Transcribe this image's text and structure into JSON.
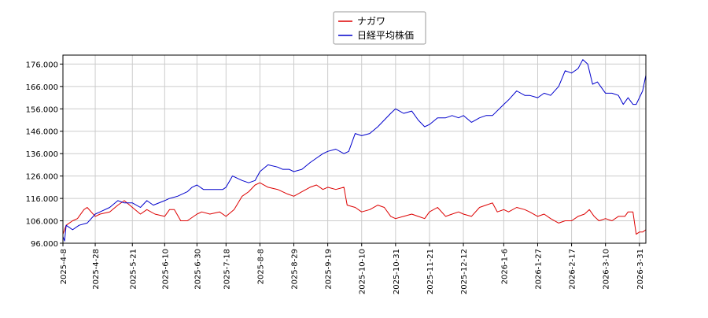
{
  "chart_data": {
    "type": "line",
    "title": "",
    "xlabel": "",
    "ylabel": "",
    "ylim": [
      96,
      180
    ],
    "y_ticks": [
      96,
      106,
      116,
      126,
      136,
      146,
      156,
      166,
      176
    ],
    "y_tick_labels": [
      "96.000",
      "106.000",
      "116.000",
      "126.000",
      "136.000",
      "146.000",
      "156.000",
      "166.000",
      "176.000"
    ],
    "x_range": [
      "2025-04-08",
      "2026-04-04"
    ],
    "x_ticks": [
      "2025-4-8",
      "2025-4-28",
      "2025-5-21",
      "2025-6-10",
      "2025-6-30",
      "2025-7-18",
      "2025-8-8",
      "2025-8-29",
      "2025-9-19",
      "2025-10-10",
      "2025-10-31",
      "2025-11-21",
      "2025-12-12",
      "2026-1-6",
      "2026-1-27",
      "2026-2-17",
      "2026-3-10",
      "2026-3-31"
    ],
    "grid": true,
    "legend_position": "top-center",
    "series": [
      {
        "name": "ナガワ",
        "color": "#dd0000",
        "points": [
          [
            "2025-04-08",
            100
          ],
          [
            "2025-04-10",
            104
          ],
          [
            "2025-04-14",
            106
          ],
          [
            "2025-04-17",
            107
          ],
          [
            "2025-04-21",
            111
          ],
          [
            "2025-04-23",
            112
          ],
          [
            "2025-04-28",
            108
          ],
          [
            "2025-05-01",
            109
          ],
          [
            "2025-05-07",
            110
          ],
          [
            "2025-05-12",
            113
          ],
          [
            "2025-05-16",
            115
          ],
          [
            "2025-05-21",
            112
          ],
          [
            "2025-05-26",
            109
          ],
          [
            "2025-05-30",
            111
          ],
          [
            "2025-06-04",
            109
          ],
          [
            "2025-06-10",
            108
          ],
          [
            "2025-06-13",
            111
          ],
          [
            "2025-06-16",
            111
          ],
          [
            "2025-06-20",
            106
          ],
          [
            "2025-06-24",
            106
          ],
          [
            "2025-06-30",
            109
          ],
          [
            "2025-07-03",
            110
          ],
          [
            "2025-07-08",
            109
          ],
          [
            "2025-07-14",
            110
          ],
          [
            "2025-07-18",
            108
          ],
          [
            "2025-07-23",
            111
          ],
          [
            "2025-07-28",
            117
          ],
          [
            "2025-08-01",
            119
          ],
          [
            "2025-08-05",
            122
          ],
          [
            "2025-08-08",
            123
          ],
          [
            "2025-08-13",
            121
          ],
          [
            "2025-08-19",
            120
          ],
          [
            "2025-08-25",
            118
          ],
          [
            "2025-08-29",
            117
          ],
          [
            "2025-09-03",
            119
          ],
          [
            "2025-09-08",
            121
          ],
          [
            "2025-09-12",
            122
          ],
          [
            "2025-09-16",
            120
          ],
          [
            "2025-09-19",
            121
          ],
          [
            "2025-09-24",
            120
          ],
          [
            "2025-09-29",
            121
          ],
          [
            "2025-10-01",
            113
          ],
          [
            "2025-10-06",
            112
          ],
          [
            "2025-10-10",
            110
          ],
          [
            "2025-10-15",
            111
          ],
          [
            "2025-10-20",
            113
          ],
          [
            "2025-10-24",
            112
          ],
          [
            "2025-10-28",
            108
          ],
          [
            "2025-10-31",
            107
          ],
          [
            "2025-11-05",
            108
          ],
          [
            "2025-11-10",
            109
          ],
          [
            "2025-11-14",
            108
          ],
          [
            "2025-11-18",
            107
          ],
          [
            "2025-11-21",
            110
          ],
          [
            "2025-11-26",
            112
          ],
          [
            "2025-12-01",
            108
          ],
          [
            "2025-12-05",
            109
          ],
          [
            "2025-12-09",
            110
          ],
          [
            "2025-12-12",
            109
          ],
          [
            "2025-12-17",
            108
          ],
          [
            "2025-12-22",
            112
          ],
          [
            "2025-12-26",
            113
          ],
          [
            "2025-12-30",
            114
          ],
          [
            "2026-01-02",
            110
          ],
          [
            "2026-01-06",
            111
          ],
          [
            "2026-01-09",
            110
          ],
          [
            "2026-01-14",
            112
          ],
          [
            "2026-01-19",
            111
          ],
          [
            "2026-01-22",
            110
          ],
          [
            "2026-01-27",
            108
          ],
          [
            "2026-01-31",
            109
          ],
          [
            "2026-02-04",
            107
          ],
          [
            "2026-02-09",
            105
          ],
          [
            "2026-02-13",
            106
          ],
          [
            "2026-02-17",
            106
          ],
          [
            "2026-02-21",
            108
          ],
          [
            "2026-02-25",
            109
          ],
          [
            "2026-02-28",
            111
          ],
          [
            "2026-03-03",
            108
          ],
          [
            "2026-03-06",
            106
          ],
          [
            "2026-03-10",
            107
          ],
          [
            "2026-03-14",
            106
          ],
          [
            "2026-03-18",
            108
          ],
          [
            "2026-03-22",
            108
          ],
          [
            "2026-03-24",
            110
          ],
          [
            "2026-03-27",
            110
          ],
          [
            "2026-03-29",
            100
          ],
          [
            "2026-03-31",
            101
          ],
          [
            "2026-04-02",
            101
          ],
          [
            "2026-04-04",
            102
          ]
        ]
      },
      {
        "name": "日経平均株価",
        "color": "#0000cc",
        "points": [
          [
            "2025-04-08",
            99
          ],
          [
            "2025-04-09",
            97
          ],
          [
            "2025-04-10",
            104
          ],
          [
            "2025-04-14",
            102
          ],
          [
            "2025-04-18",
            104
          ],
          [
            "2025-04-23",
            105
          ],
          [
            "2025-04-28",
            109
          ],
          [
            "2025-05-01",
            110
          ],
          [
            "2025-05-07",
            112
          ],
          [
            "2025-05-12",
            115
          ],
          [
            "2025-05-16",
            114
          ],
          [
            "2025-05-21",
            114
          ],
          [
            "2025-05-26",
            112
          ],
          [
            "2025-05-30",
            115
          ],
          [
            "2025-06-03",
            113
          ],
          [
            "2025-06-10",
            115
          ],
          [
            "2025-06-13",
            116
          ],
          [
            "2025-06-18",
            117
          ],
          [
            "2025-06-24",
            119
          ],
          [
            "2025-06-27",
            121
          ],
          [
            "2025-06-30",
            122
          ],
          [
            "2025-07-04",
            120
          ],
          [
            "2025-07-10",
            120
          ],
          [
            "2025-07-16",
            120
          ],
          [
            "2025-07-18",
            121
          ],
          [
            "2025-07-22",
            126
          ],
          [
            "2025-07-28",
            124
          ],
          [
            "2025-08-01",
            123
          ],
          [
            "2025-08-05",
            124
          ],
          [
            "2025-08-08",
            128
          ],
          [
            "2025-08-13",
            131
          ],
          [
            "2025-08-19",
            130
          ],
          [
            "2025-08-22",
            129
          ],
          [
            "2025-08-26",
            129
          ],
          [
            "2025-08-29",
            128
          ],
          [
            "2025-09-03",
            129
          ],
          [
            "2025-09-08",
            132
          ],
          [
            "2025-09-12",
            134
          ],
          [
            "2025-09-16",
            136
          ],
          [
            "2025-09-19",
            137
          ],
          [
            "2025-09-24",
            138
          ],
          [
            "2025-09-29",
            136
          ],
          [
            "2025-10-02",
            137
          ],
          [
            "2025-10-06",
            145
          ],
          [
            "2025-10-10",
            144
          ],
          [
            "2025-10-15",
            145
          ],
          [
            "2025-10-20",
            148
          ],
          [
            "2025-10-24",
            151
          ],
          [
            "2025-10-28",
            154
          ],
          [
            "2025-10-31",
            156
          ],
          [
            "2025-11-05",
            154
          ],
          [
            "2025-11-10",
            155
          ],
          [
            "2025-11-14",
            151
          ],
          [
            "2025-11-18",
            148
          ],
          [
            "2025-11-21",
            149
          ],
          [
            "2025-11-26",
            152
          ],
          [
            "2025-12-01",
            152
          ],
          [
            "2025-12-05",
            153
          ],
          [
            "2025-12-09",
            152
          ],
          [
            "2025-12-12",
            153
          ],
          [
            "2025-12-17",
            150
          ],
          [
            "2025-12-22",
            152
          ],
          [
            "2025-12-26",
            153
          ],
          [
            "2025-12-30",
            153
          ],
          [
            "2026-01-06",
            158
          ],
          [
            "2026-01-09",
            160
          ],
          [
            "2026-01-14",
            164
          ],
          [
            "2026-01-19",
            162
          ],
          [
            "2026-01-22",
            162
          ],
          [
            "2026-01-27",
            161
          ],
          [
            "2026-01-31",
            163
          ],
          [
            "2026-02-04",
            162
          ],
          [
            "2026-02-09",
            166
          ],
          [
            "2026-02-13",
            173
          ],
          [
            "2026-02-17",
            172
          ],
          [
            "2026-02-21",
            174
          ],
          [
            "2026-02-24",
            178
          ],
          [
            "2026-02-27",
            176
          ],
          [
            "2026-03-02",
            167
          ],
          [
            "2026-03-05",
            168
          ],
          [
            "2026-03-10",
            163
          ],
          [
            "2026-03-14",
            163
          ],
          [
            "2026-03-18",
            162
          ],
          [
            "2026-03-21",
            158
          ],
          [
            "2026-03-24",
            161
          ],
          [
            "2026-03-27",
            158
          ],
          [
            "2026-03-29",
            158
          ],
          [
            "2026-03-31",
            161
          ],
          [
            "2026-04-02",
            164
          ],
          [
            "2026-04-04",
            171
          ]
        ]
      }
    ]
  }
}
